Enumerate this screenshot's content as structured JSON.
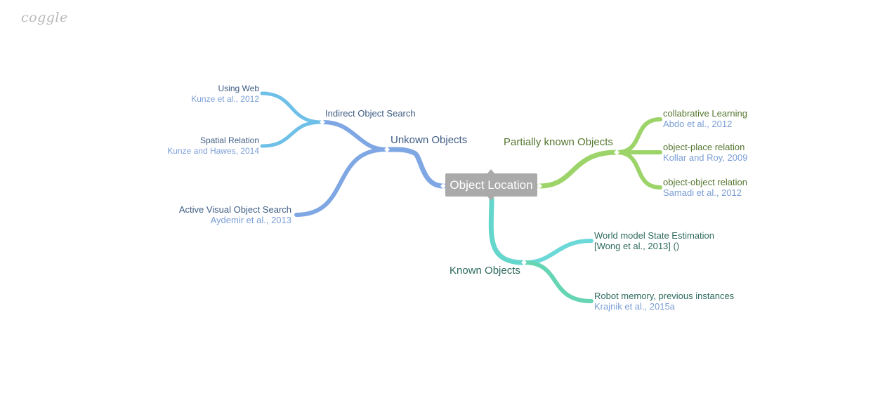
{
  "logo": "coggle",
  "colors": {
    "unknown_branch": "#7fa7e4",
    "indirect_branch": "#6fc0e8",
    "partial_branch": "#9dd46a",
    "known_branch": "#64d6cc",
    "center_fill": "#aaaaaa",
    "citation": "#7b9ed6"
  },
  "center": {
    "label": "Object Location"
  },
  "unknown": {
    "label": "Unkown Objects",
    "indirect": {
      "label": "Indirect Object Search",
      "web": {
        "label": "Using Web",
        "cite": "Kunze et al., 2012"
      },
      "spatial": {
        "label": "Spatial Relation",
        "cite": "Kunze and Hawes, 2014"
      }
    },
    "active": {
      "label": "Active Visual Object Search",
      "cite": "Aydemir et al., 2013"
    }
  },
  "partial": {
    "label": "Partially known Objects",
    "collab": {
      "label": "collabrative Learning",
      "cite": "Abdo et al., 2012"
    },
    "place": {
      "label": "object-place relation",
      "cite": "Kollar and Roy, 2009"
    },
    "object": {
      "label": "object-object relation",
      "cite": "Samadi et al., 2012"
    }
  },
  "known": {
    "label": "Known Objects",
    "world": {
      "label": "World model State Estimation",
      "cite": "[Wong et al., 2013] ()"
    },
    "memory": {
      "label": "Robot memory, previous instances",
      "cite": "Krajnik et al., 2015a"
    }
  }
}
